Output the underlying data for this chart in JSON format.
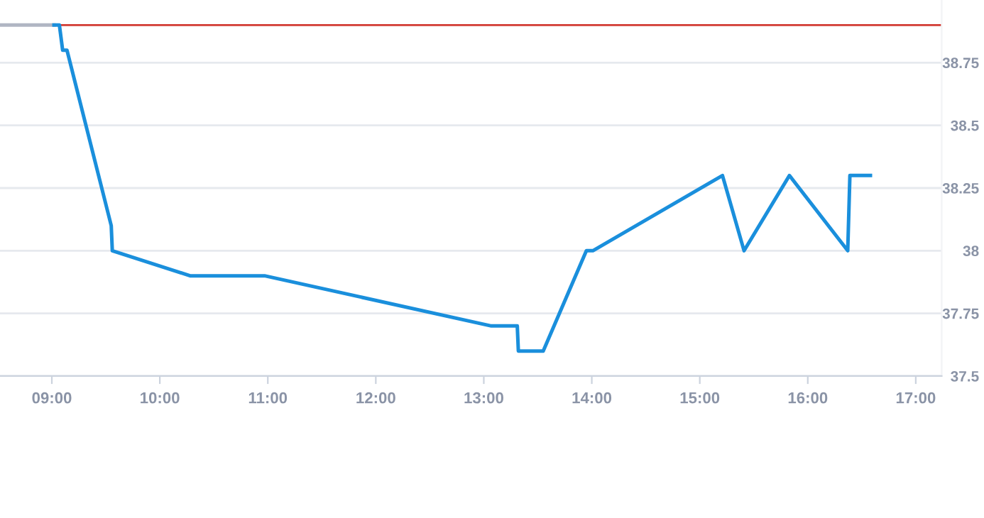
{
  "chart_data": {
    "type": "line",
    "series": [
      {
        "color": "#b0b6c3",
        "x": [
          8.52,
          9.02
        ],
        "values": [
          38.9,
          38.9
        ]
      },
      {
        "color": "#1a8fdc",
        "x": [
          9.02,
          9.07,
          9.1,
          9.14,
          9.55,
          9.56,
          10.28,
          10.97,
          13.07,
          13.31,
          13.32,
          13.55,
          13.95,
          14.01,
          15.21,
          15.41,
          15.83,
          16.37,
          16.39,
          16.58
        ],
        "values": [
          38.9,
          38.9,
          38.8,
          38.8,
          38.1,
          38.0,
          37.9,
          37.9,
          37.7,
          37.7,
          37.6,
          37.6,
          38.0,
          38.0,
          38.3,
          38.0,
          38.3,
          38.0,
          38.3,
          38.3
        ]
      }
    ],
    "xlim": [
      8.52,
      17.24
    ],
    "xticks": [
      {
        "value": 9,
        "label": "09:00"
      },
      {
        "value": 10,
        "label": "10:00"
      },
      {
        "value": 11,
        "label": "11:00"
      },
      {
        "value": 12,
        "label": "12:00"
      },
      {
        "value": 13,
        "label": "13:00"
      },
      {
        "value": 14,
        "label": "14:00"
      },
      {
        "value": 15,
        "label": "15:00"
      },
      {
        "value": 16,
        "label": "16:00"
      },
      {
        "value": 17,
        "label": "17:00"
      }
    ],
    "ylim": [
      37.5,
      39.0
    ],
    "yticks": [
      37.5,
      37.75,
      38,
      38.25,
      38.5,
      38.75
    ],
    "ref_lines": [
      {
        "axis": "y",
        "value": 38.9,
        "color": "#d23a32"
      }
    ],
    "grid": "y",
    "marker": "none",
    "line_style": "solid"
  }
}
